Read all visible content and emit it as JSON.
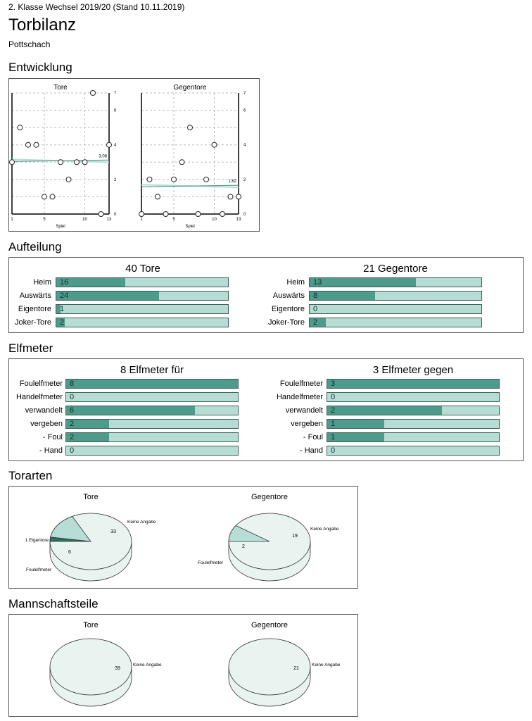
{
  "header": {
    "subtitle": "2. Klasse Wechsel 2019/20 (Stand 10.11.2019)",
    "title": "Torbilanz",
    "team": "Pottschach"
  },
  "sections": {
    "entwicklung": "Entwicklung",
    "aufteilung": "Aufteilung",
    "elfmeter": "Elfmeter",
    "torarten": "Torarten",
    "mannschaftsteile": "Mannschaftsteile"
  },
  "colors": {
    "bar_fill": "#4e9a8b",
    "bar_bg": "#b6ddd4",
    "pie": "#e9f3ef",
    "pie_slice": "#b8ddd5",
    "trend": "#4e9a8b"
  },
  "chart_data": [
    {
      "type": "scatter",
      "title": "Tore",
      "xlabel": "Spiel",
      "x_ticks": [
        "1",
        "5",
        "10",
        "13"
      ],
      "y_ticks": [
        "0",
        "2",
        "4",
        "6",
        "7"
      ],
      "xlim": [
        1,
        13
      ],
      "ylim": [
        0,
        7
      ],
      "points": [
        [
          1,
          3
        ],
        [
          2,
          5
        ],
        [
          3,
          4
        ],
        [
          4,
          4
        ],
        [
          5,
          1
        ],
        [
          6,
          1
        ],
        [
          7,
          3
        ],
        [
          8,
          2
        ],
        [
          9,
          3
        ],
        [
          10,
          3
        ],
        [
          11,
          7
        ],
        [
          12,
          0
        ],
        [
          13,
          4
        ]
      ],
      "average": 3.08,
      "average_label": "3,08"
    },
    {
      "type": "scatter",
      "title": "Gegentore",
      "xlabel": "Spiel",
      "x_ticks": [
        "1",
        "5",
        "10",
        "13"
      ],
      "y_ticks": [
        "0",
        "2",
        "4",
        "6",
        "7"
      ],
      "xlim": [
        1,
        13
      ],
      "ylim": [
        0,
        7
      ],
      "points": [
        [
          1,
          0
        ],
        [
          2,
          2
        ],
        [
          3,
          1
        ],
        [
          4,
          0
        ],
        [
          5,
          2
        ],
        [
          6,
          3
        ],
        [
          7,
          5
        ],
        [
          8,
          0
        ],
        [
          9,
          2
        ],
        [
          10,
          4
        ],
        [
          11,
          0
        ],
        [
          12,
          1
        ],
        [
          13,
          1
        ]
      ],
      "average": 1.62,
      "average_label": "1,62"
    },
    {
      "type": "bar",
      "title": "40 Tore",
      "max": 40,
      "categories": [
        "Heim",
        "Auswärts",
        "Eigentore",
        "Joker-Tore"
      ],
      "values": [
        16,
        24,
        1,
        2
      ]
    },
    {
      "type": "bar",
      "title": "21 Gegentore",
      "max": 21,
      "categories": [
        "Heim",
        "Auswärts",
        "Eigentore",
        "Joker-Tore"
      ],
      "values": [
        13,
        8,
        0,
        2
      ]
    },
    {
      "type": "bar",
      "title": "8 Elfmeter für",
      "max": 8,
      "categories": [
        "Foulelfmeter",
        "Handelfmeter",
        "verwandelt",
        "vergeben",
        "- Foul",
        "- Hand"
      ],
      "values": [
        8,
        0,
        6,
        2,
        2,
        0
      ]
    },
    {
      "type": "bar",
      "title": "3 Elfmeter gegen",
      "max": 3,
      "categories": [
        "Foulelfmeter",
        "Handelfmeter",
        "verwandelt",
        "vergeben",
        "- Foul",
        "- Hand"
      ],
      "values": [
        3,
        0,
        2,
        1,
        1,
        0
      ]
    },
    {
      "type": "pie",
      "title": "Tore",
      "slices": [
        {
          "label": "Keine Angabe",
          "value": 33
        },
        {
          "label": "Eigentore",
          "value": 1
        },
        {
          "label": "Foulelfmeter",
          "value": 6
        }
      ],
      "labels": [
        "Keine Angabe",
        "1 Eigentore",
        "Foulelfmeter"
      ],
      "values_text": [
        "33",
        "6"
      ]
    },
    {
      "type": "pie",
      "title": "Gegentore",
      "slices": [
        {
          "label": "Keine Angabe",
          "value": 19
        },
        {
          "label": "Foulelfmeter",
          "value": 2
        }
      ],
      "labels": [
        "Keine Angabe",
        "Foulelfmeter"
      ],
      "values_text": [
        "19",
        "2"
      ]
    },
    {
      "type": "pie",
      "title": "Tore",
      "slices": [
        {
          "label": "Keine Angabe",
          "value": 39
        }
      ],
      "labels": [
        "Keine Angabe"
      ],
      "values_text": [
        "39"
      ]
    },
    {
      "type": "pie",
      "title": "Gegentore",
      "slices": [
        {
          "label": "Keine Angabe",
          "value": 21
        }
      ],
      "labels": [
        "Keine Angabe"
      ],
      "values_text": [
        "21"
      ]
    }
  ]
}
